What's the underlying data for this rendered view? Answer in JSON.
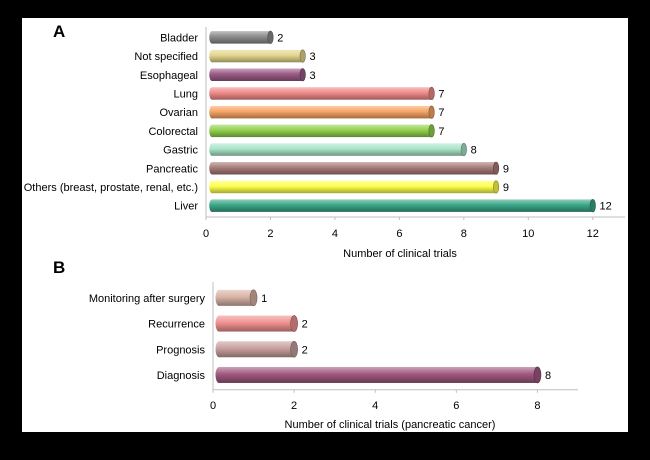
{
  "colors": {
    "background": "#000000",
    "panel": "#ffffff",
    "axis": "#bfbfbf"
  },
  "chart_data": [
    {
      "type": "bar",
      "orientation": "horizontal",
      "panel_label": "A",
      "categories": [
        "Bladder",
        "Not specified",
        "Esophageal",
        "Lung",
        "Ovarian",
        "Colorectal",
        "Gastric",
        "Pancreatic",
        "Others (breast, prostate, renal, etc.)",
        "Liver"
      ],
      "values": [
        2,
        3,
        3,
        7,
        7,
        7,
        8,
        9,
        9,
        12
      ],
      "bar_colors": [
        "#8c8c8c",
        "#e3d58c",
        "#9b5a86",
        "#f08a8a",
        "#f7a565",
        "#92d14e",
        "#a9e4c8",
        "#a77b78",
        "#ffff4d",
        "#3aa687"
      ],
      "xlabel": "Number of clinical trials",
      "xlim": [
        0,
        13
      ],
      "xticks": [
        0,
        2,
        4,
        6,
        8,
        10,
        12
      ],
      "grid": false
    },
    {
      "type": "bar",
      "orientation": "horizontal",
      "panel_label": "B",
      "categories": [
        "Monitoring after surgery",
        "Recurrence",
        "Prognosis",
        "Diagnosis"
      ],
      "values": [
        1,
        2,
        2,
        8
      ],
      "bar_colors": [
        "#d8b3a5",
        "#f09090",
        "#c89f9f",
        "#a0587f"
      ],
      "xlabel": "Number of clinical trials (pancreatic cancer)",
      "xlim": [
        0,
        9
      ],
      "xticks": [
        0,
        2,
        4,
        6,
        8
      ],
      "grid": false
    }
  ]
}
